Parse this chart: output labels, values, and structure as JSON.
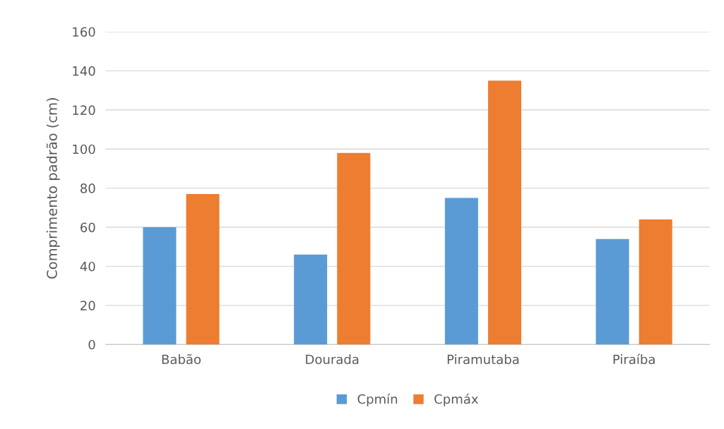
{
  "chart_data": {
    "type": "bar",
    "ylabel": "Comprimento padrão (cm)",
    "categories": [
      "Babão",
      "Dourada",
      "Piramutaba",
      "Piraíba"
    ],
    "series": [
      {
        "name": "Cpmín",
        "color": "#5b9bd5",
        "values": [
          60,
          46,
          75,
          54
        ]
      },
      {
        "name": "Cpmáx",
        "color": "#ed7d31",
        "values": [
          77,
          98,
          135,
          64
        ]
      }
    ],
    "ylim": [
      0,
      160
    ],
    "yticks": [
      0,
      20,
      40,
      60,
      80,
      100,
      120,
      140,
      160
    ],
    "grid": "y",
    "legend": "bottom"
  }
}
